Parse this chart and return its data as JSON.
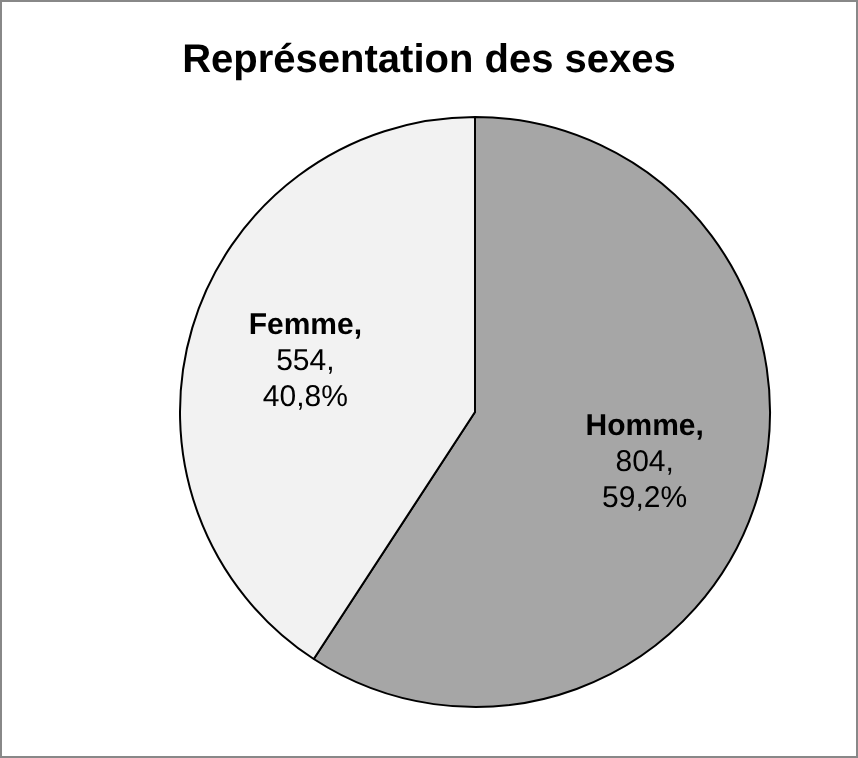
{
  "chart_data": {
    "type": "pie",
    "title": "Représentation des sexes",
    "categories": [
      "Homme",
      "Femme"
    ],
    "values": [
      804,
      554
    ],
    "colors": [
      "#a6a6a6",
      "#f2f2f2"
    ],
    "value_labels": [
      ", 804, 59,2%",
      ", 554, 40,8%"
    ],
    "legend": false
  }
}
